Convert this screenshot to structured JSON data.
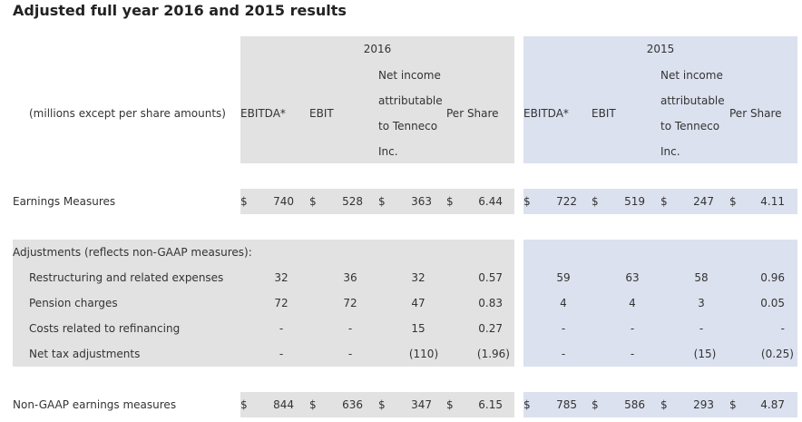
{
  "title": "Adjusted full year 2016 and 2015 results",
  "colors": {
    "gray_band": "#e2e2e2",
    "blue_band": "#dce1ef",
    "white": "#ffffff"
  },
  "header": {
    "y2016": "2016",
    "y2015": "2015",
    "units_note": "(millions except per share amounts)",
    "col_ebitda": "EBITDA*",
    "col_ebit": "EBIT",
    "col_net_line1": "Net income",
    "col_net_line2": "attributable",
    "col_net_line3": "to Tenneco",
    "col_net_line4": "Inc.",
    "col_per_share": "Per Share"
  },
  "rows": {
    "earnings": {
      "label": "Earnings Measures",
      "cur": "$",
      "v2016": [
        "740",
        "528",
        "363",
        "6.44"
      ],
      "v2015": [
        "722",
        "519",
        "247",
        "4.11"
      ]
    },
    "adjustments_heading": "Adjustments (reflects non-GAAP measures):",
    "restructuring": {
      "label": "Restructuring and related expenses",
      "v2016": [
        "32",
        "36",
        "32",
        "0.57"
      ],
      "v2015": [
        "59",
        "63",
        "58",
        "0.96"
      ]
    },
    "pension": {
      "label": "Pension charges",
      "v2016": [
        "72",
        "72",
        "47",
        "0.83"
      ],
      "v2015": [
        "4",
        "4",
        "3",
        "0.05"
      ]
    },
    "refinancing": {
      "label": "Costs related to refinancing",
      "v2016": [
        "-",
        "-",
        "15",
        "0.27"
      ],
      "v2015": [
        "-",
        "-",
        "-",
        "-"
      ]
    },
    "tax": {
      "label": "Net tax adjustments",
      "v2016": [
        "-",
        "-",
        "(110)",
        "(1.96)"
      ],
      "v2015": [
        "-",
        "-",
        "(15)",
        "(0.25)"
      ]
    },
    "nongaap": {
      "label": "Non-GAAP earnings measures",
      "cur": "$",
      "v2016": [
        "844",
        "636",
        "347",
        "6.15"
      ],
      "v2015": [
        "785",
        "586",
        "293",
        "4.87"
      ]
    }
  }
}
